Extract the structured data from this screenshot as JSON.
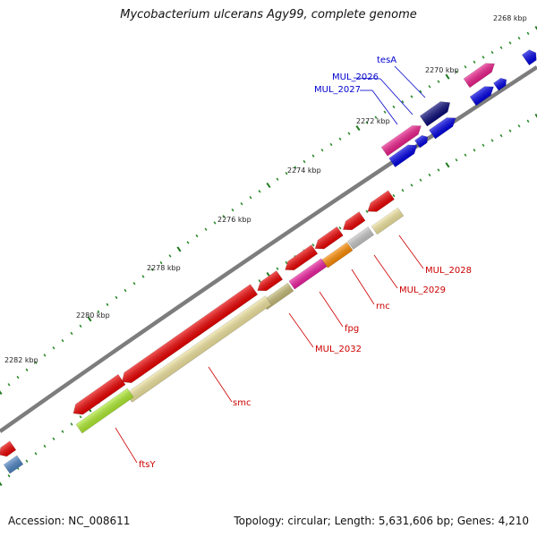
{
  "title": "Mycobacterium ulcerans Agy99, complete genome",
  "footer": {
    "accession": "Accession: NC_008611",
    "summary": "Topology: circular; Length: 5,631,606 bp; Genes: 4,210"
  },
  "colors": {
    "backbone": "#808080",
    "label_red": "#cc0000",
    "label_blue": "#0000cc",
    "tick_major": "#1a7a1a",
    "tick_minor": "#1a7a1a"
  },
  "tick_labels": [
    "2268 kbp",
    "2270 kbp",
    "2272 kbp",
    "2274 kbp",
    "2276 kbp",
    "2278 kbp",
    "2280 kbp",
    "2282 kbp"
  ],
  "gene_labels": {
    "tesA": "tesA",
    "MUL_2026": "MUL_2026",
    "MUL_2027": "MUL_2027",
    "MUL_2028": "MUL_2028",
    "MUL_2029": "MUL_2029",
    "rnc": "rnc",
    "fpg": "fpg",
    "MUL_2032": "MUL_2032",
    "smc": "smc",
    "ftsY": "ftsY"
  }
}
